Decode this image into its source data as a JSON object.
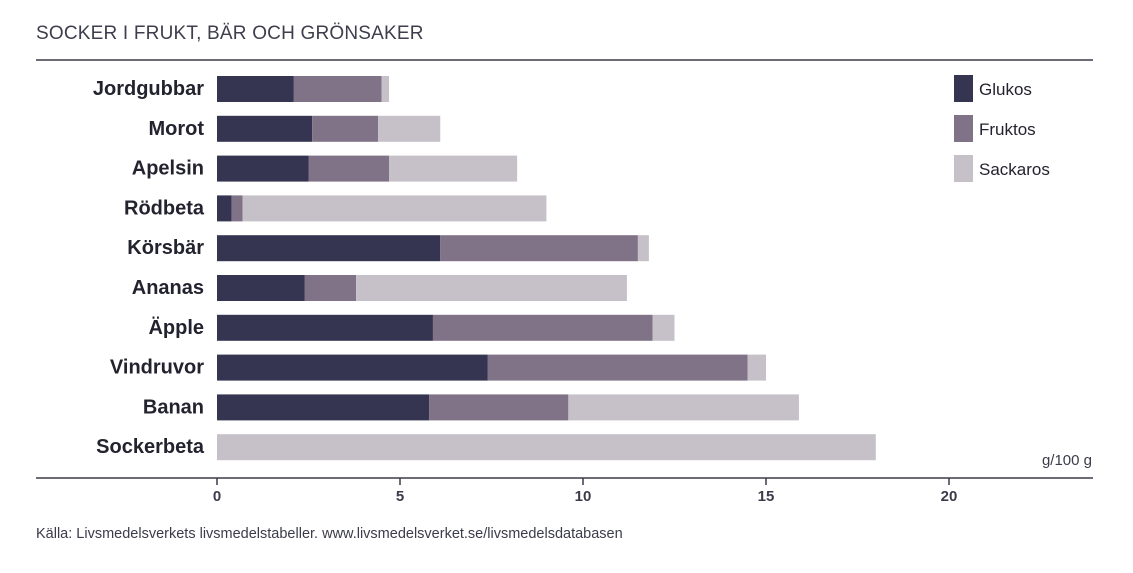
{
  "chart_data": {
    "type": "bar",
    "orientation": "horizontal",
    "stacked": true,
    "title": "SOCKER I FRUKT, BÄR OCH GRÖNSAKER",
    "unit_label": "g/100 g",
    "source": "Källa: Livsmedelsverkets livsmedelstabeller. www.livsmedelsverket.se/livsmedelsdatabasen",
    "categories": [
      "Jordgubbar",
      "Morot",
      "Apelsin",
      "Rödbeta",
      "Körsbär",
      "Ananas",
      "Äpple",
      "Vindruvor",
      "Banan",
      "Sockerbeta"
    ],
    "series": [
      {
        "name": "Glukos",
        "color": "#363551",
        "values": [
          2.1,
          2.6,
          2.5,
          0.4,
          6.1,
          2.4,
          5.9,
          7.4,
          5.8,
          0
        ]
      },
      {
        "name": "Fruktos",
        "color": "#807287",
        "values": [
          2.4,
          1.8,
          2.2,
          0.3,
          5.4,
          1.4,
          6.0,
          7.1,
          3.8,
          0
        ]
      },
      {
        "name": "Sackaros",
        "color": "#c6c1c9",
        "values": [
          0.2,
          1.7,
          3.5,
          8.3,
          0.3,
          7.4,
          0.6,
          0.5,
          6.3,
          18.0
        ]
      }
    ],
    "xlim": [
      0,
      24
    ],
    "xticks": [
      0,
      5,
      10,
      15,
      20
    ],
    "legend_position": "top-right",
    "grid": false
  }
}
